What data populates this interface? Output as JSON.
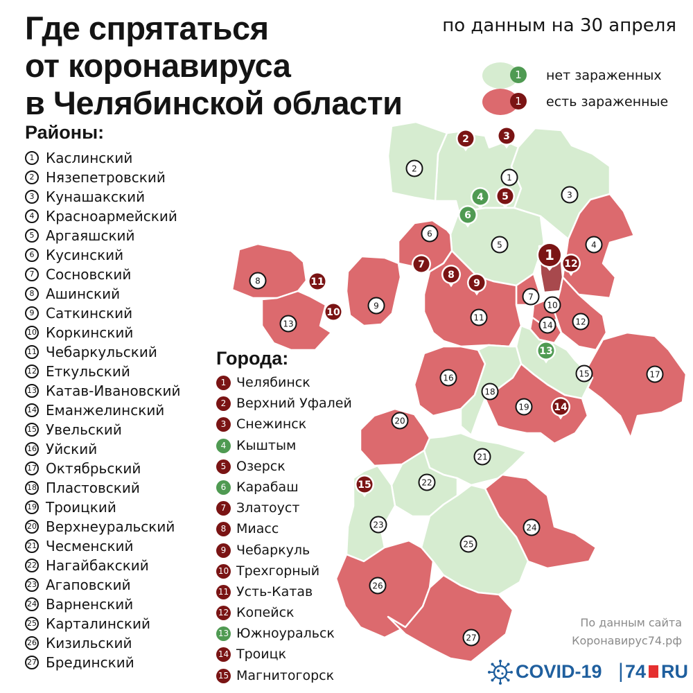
{
  "title_lines": [
    "Где спрятаться",
    "от коронавируса",
    "в Челябинской области"
  ],
  "date_note": "по данным на 30 апреля",
  "colors": {
    "clean_region": "#d6ecd0",
    "infected_region": "#dc6a6e",
    "badge_clean": "#4f9a52",
    "badge_infected": "#7a1414",
    "border": "#ffffff",
    "text": "#141414",
    "brand": "#1f5f9e"
  },
  "legend": [
    {
      "status": "clean",
      "badge": "1",
      "label": "нет зараженных"
    },
    {
      "status": "infected",
      "badge": "1",
      "label": "есть зараженные"
    }
  ],
  "districts_heading": "Районы:",
  "districts": [
    {
      "n": "1",
      "name": "Каслинский",
      "status": "clean"
    },
    {
      "n": "2",
      "name": "Нязепетровский",
      "status": "clean"
    },
    {
      "n": "3",
      "name": "Кунашакский",
      "status": "clean"
    },
    {
      "n": "4",
      "name": "Красноармейский",
      "status": "infected"
    },
    {
      "n": "5",
      "name": "Аргаяшский",
      "status": "clean"
    },
    {
      "n": "6",
      "name": "Кусинский",
      "status": "infected"
    },
    {
      "n": "7",
      "name": "Сосновский",
      "status": "infected"
    },
    {
      "n": "8",
      "name": "Ашинский",
      "status": "infected"
    },
    {
      "n": "9",
      "name": "Саткинский",
      "status": "infected"
    },
    {
      "n": "10",
      "name": "Коркинский",
      "status": "infected"
    },
    {
      "n": "11",
      "name": "Чебаркульский",
      "status": "infected"
    },
    {
      "n": "12",
      "name": "Еткульский",
      "status": "infected"
    },
    {
      "n": "13",
      "name": "Катав-Ивановский",
      "status": "infected"
    },
    {
      "n": "14",
      "name": "Еманжелинский",
      "status": "infected"
    },
    {
      "n": "15",
      "name": "Увельский",
      "status": "clean"
    },
    {
      "n": "16",
      "name": "Уйский",
      "status": "infected"
    },
    {
      "n": "17",
      "name": "Октябрьский",
      "status": "infected"
    },
    {
      "n": "18",
      "name": "Пластовский",
      "status": "clean"
    },
    {
      "n": "19",
      "name": "Троицкий",
      "status": "infected"
    },
    {
      "n": "20",
      "name": "Верхнеуральский",
      "status": "infected"
    },
    {
      "n": "21",
      "name": "Чесменский",
      "status": "clean"
    },
    {
      "n": "22",
      "name": "Нагайбакский",
      "status": "clean"
    },
    {
      "n": "23",
      "name": "Агаповский",
      "status": "clean"
    },
    {
      "n": "24",
      "name": "Варненский",
      "status": "infected"
    },
    {
      "n": "25",
      "name": "Карталинский",
      "status": "clean"
    },
    {
      "n": "26",
      "name": "Кизильский",
      "status": "infected"
    },
    {
      "n": "27",
      "name": "Брединский",
      "status": "infected"
    }
  ],
  "cities_heading": "Города:",
  "cities": [
    {
      "n": "1",
      "name": "Челябинск",
      "status": "infected"
    },
    {
      "n": "2",
      "name": "Верхний Уфалей",
      "status": "infected"
    },
    {
      "n": "3",
      "name": "Снежинск",
      "status": "infected"
    },
    {
      "n": "4",
      "name": "Кыштым",
      "status": "clean"
    },
    {
      "n": "5",
      "name": "Озерск",
      "status": "infected"
    },
    {
      "n": "6",
      "name": "Карабаш",
      "status": "clean"
    },
    {
      "n": "7",
      "name": "Златоуст",
      "status": "infected"
    },
    {
      "n": "8",
      "name": "Миасс",
      "status": "infected"
    },
    {
      "n": "9",
      "name": "Чебаркуль",
      "status": "infected"
    },
    {
      "n": "10",
      "name": "Трехгорный",
      "status": "infected"
    },
    {
      "n": "11",
      "name": "Усть-Катав",
      "status": "infected"
    },
    {
      "n": "12",
      "name": "Копейск",
      "status": "infected"
    },
    {
      "n": "13",
      "name": "Южноуральск",
      "status": "clean"
    },
    {
      "n": "14",
      "name": "Троицк",
      "status": "infected"
    },
    {
      "n": "15",
      "name": "Магнитогорск",
      "status": "infected"
    }
  ],
  "source_note": [
    "По данным сайта",
    "Коронавирус74.рф"
  ],
  "brand": {
    "covid": "COVID-19",
    "sep": "|",
    "num": "74",
    "ru": "RU"
  },
  "map_icons": {
    "district_marker": "numbered-circle",
    "city_marker": "map-pin"
  }
}
